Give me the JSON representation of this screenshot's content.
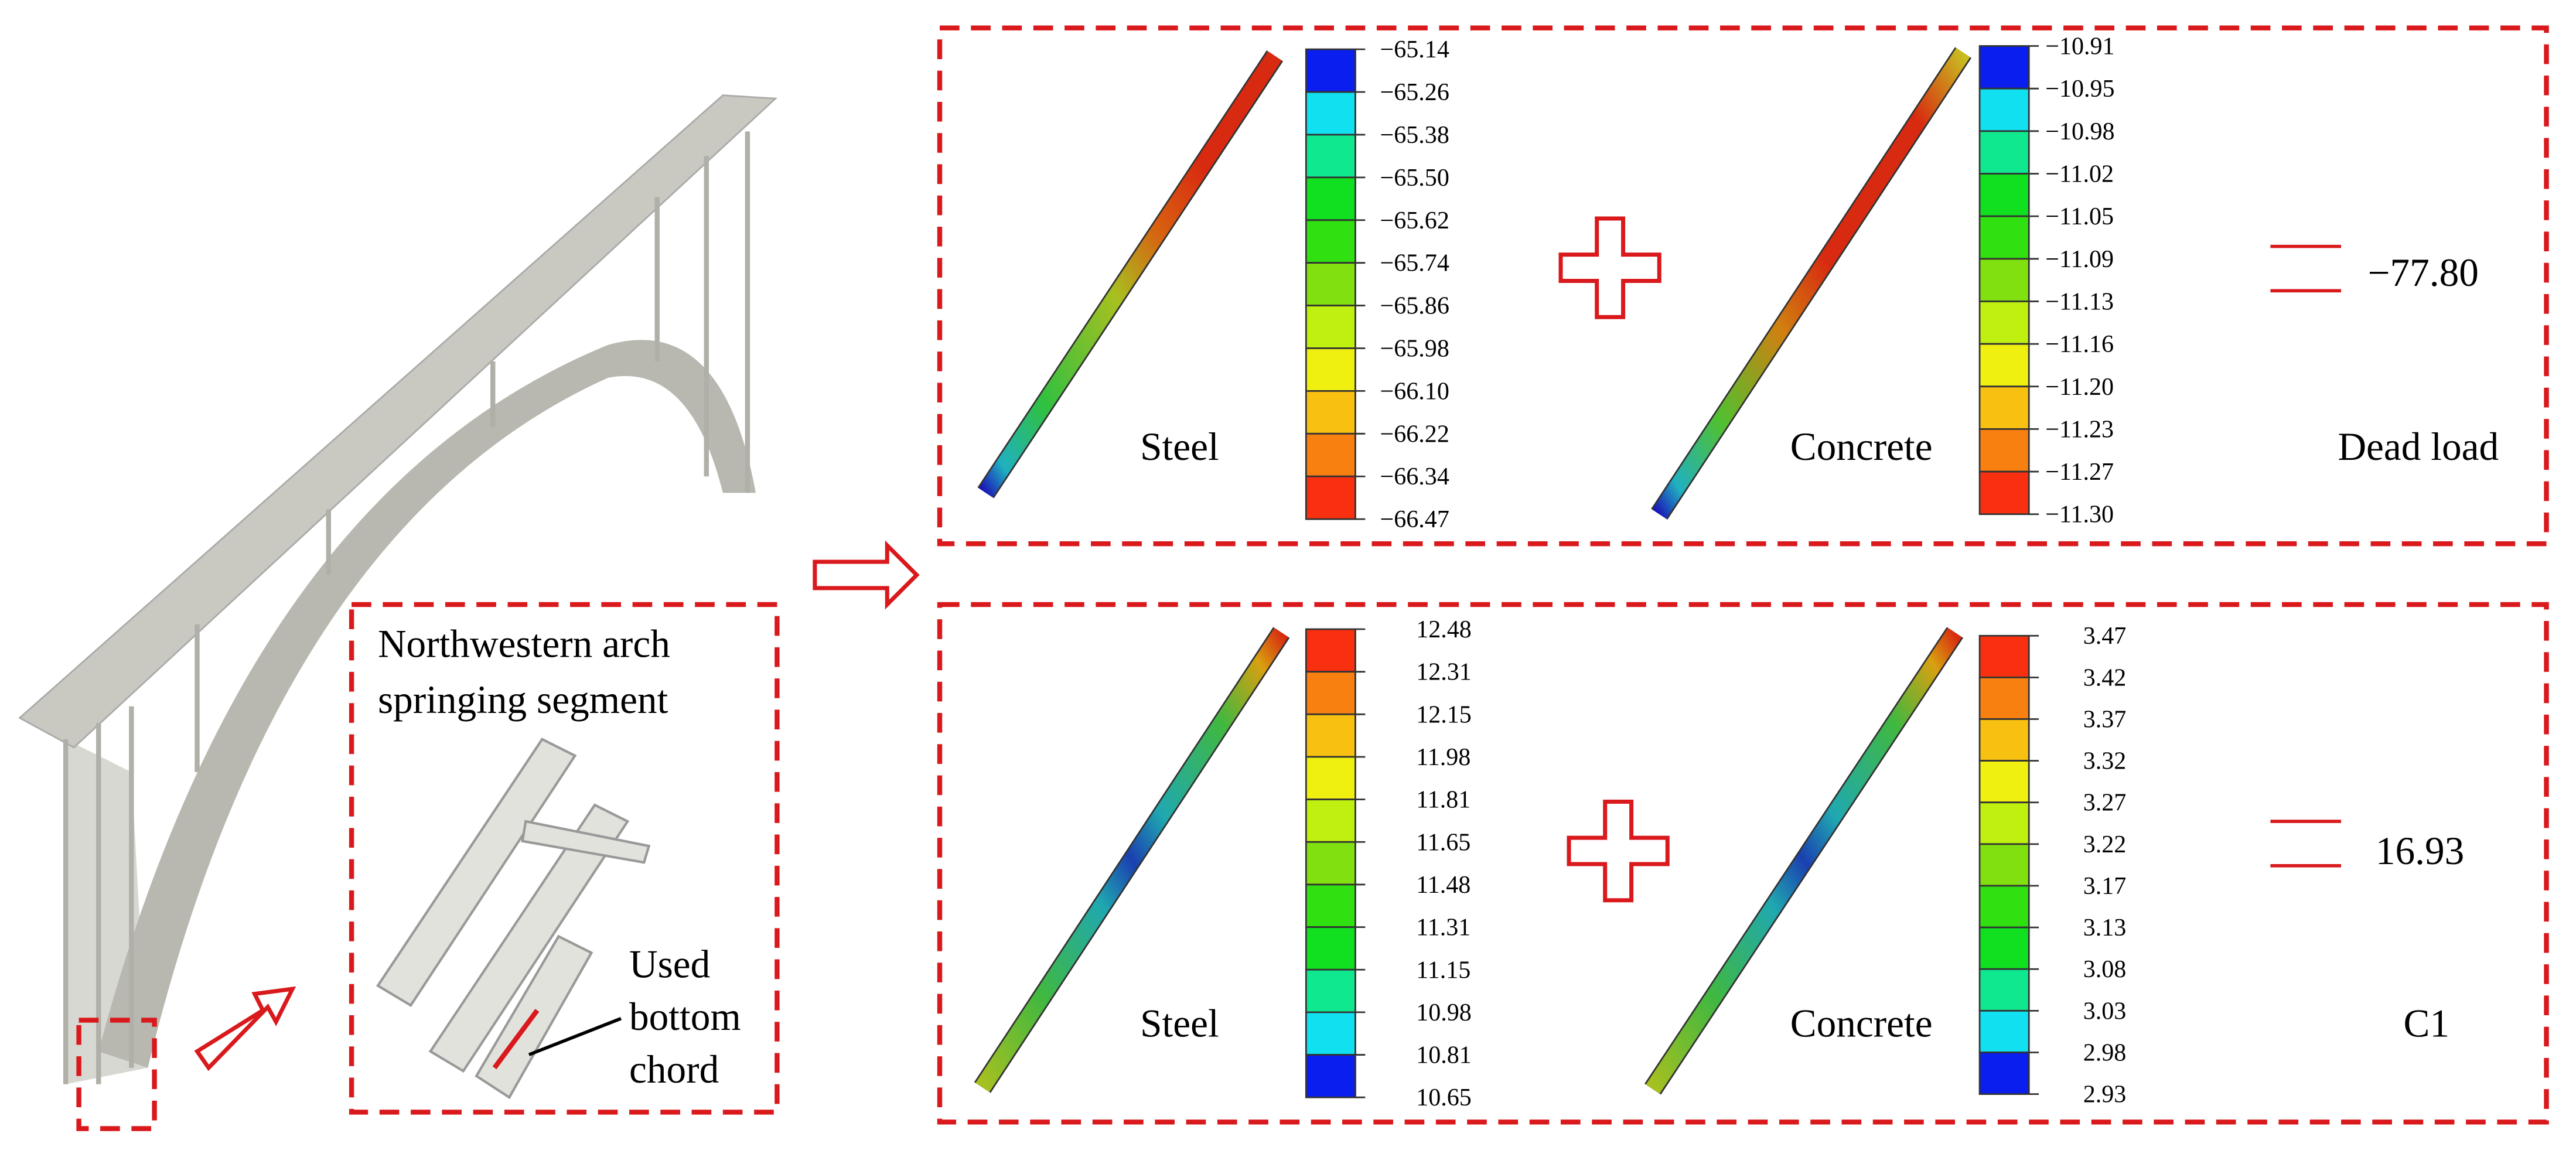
{
  "inset": {
    "title_lines": [
      "Northwestern arch",
      "springing segment"
    ],
    "callout_lines": [
      "Used",
      "bottom",
      "chord"
    ]
  },
  "panels": [
    {
      "members": [
        {
          "label": "Steel",
          "scale": [
            "−65.14",
            "−65.26",
            "−65.38",
            "−65.50",
            "−65.62",
            "−65.74",
            "−65.86",
            "−65.98",
            "−66.10",
            "−66.22",
            "−66.34",
            "−66.47"
          ]
        },
        {
          "label": "Concrete",
          "scale": [
            "−10.91",
            "−10.95",
            "−10.98",
            "−11.02",
            "−11.05",
            "−11.09",
            "−11.13",
            "−11.16",
            "−11.20",
            "−11.23",
            "−11.27",
            "−11.30"
          ]
        }
      ],
      "result": "−77.80",
      "load_case": "Dead load"
    },
    {
      "members": [
        {
          "label": "Steel",
          "scale": [
            "12.48",
            "12.31",
            "12.15",
            "11.98",
            "11.81",
            "11.65",
            "11.48",
            "11.31",
            "11.15",
            "10.98",
            "10.81",
            "10.65"
          ]
        },
        {
          "label": "Concrete",
          "scale": [
            "3.47",
            "3.42",
            "3.37",
            "3.32",
            "3.27",
            "3.22",
            "3.17",
            "3.13",
            "3.08",
            "3.03",
            "2.98",
            "2.93"
          ]
        }
      ],
      "result": "16.93",
      "load_case": "C1"
    }
  ]
}
